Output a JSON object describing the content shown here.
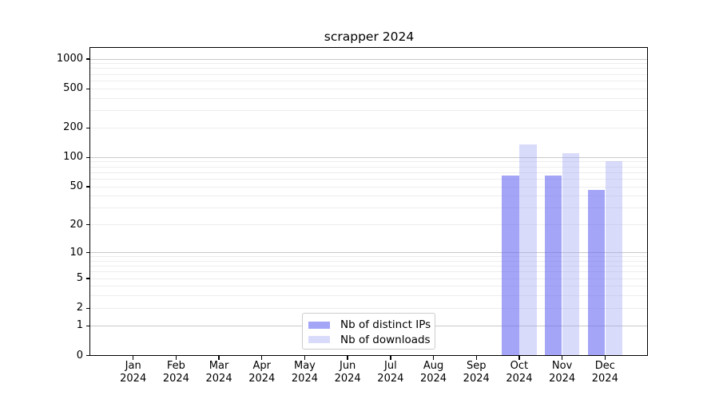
{
  "chart_data": {
    "type": "bar",
    "title": "scrapper 2024",
    "categories": [
      "Jan 2024",
      "Feb 2024",
      "Mar 2024",
      "Apr 2024",
      "May 2024",
      "Jun 2024",
      "Jul 2024",
      "Aug 2024",
      "Sep 2024",
      "Oct 2024",
      "Nov 2024",
      "Dec 2024"
    ],
    "series": [
      {
        "name": "Nb of distinct IPs",
        "color": "rgba(110,110,242,0.62)",
        "values": [
          0,
          0,
          0,
          0,
          0,
          0,
          0,
          0,
          0,
          65,
          65,
          46
        ]
      },
      {
        "name": "Nb of downloads",
        "color": "rgba(160,165,245,0.40)",
        "values": [
          0,
          0,
          0,
          0,
          0,
          0,
          0,
          0,
          0,
          135,
          110,
          92
        ]
      }
    ],
    "xlabel": "",
    "ylabel": "",
    "y_axis": {
      "scale": "symlog (log1p)",
      "tick_values": [
        0,
        1,
        2,
        5,
        10,
        20,
        50,
        100,
        200,
        500,
        1000
      ],
      "tick_labels": [
        "0",
        "1",
        "2",
        "5",
        "10",
        "20",
        "50",
        "100",
        "200",
        "500",
        "1000"
      ],
      "minor_grid_values": [
        2,
        3,
        4,
        5,
        6,
        7,
        8,
        9,
        20,
        30,
        40,
        50,
        60,
        70,
        80,
        90,
        200,
        300,
        400,
        500,
        600,
        700,
        800,
        900
      ],
      "major_grid_values": [
        1,
        10,
        100,
        1000
      ],
      "range_max": 1300
    },
    "grid": "on",
    "legend_position": "bottom-center",
    "colors": {
      "bar_distinct_ips": "#a9a9f7",
      "bar_downloads": "#d9dbfa",
      "major_grid": "#c9c9c9",
      "minor_grid": "#ededed",
      "axis": "#000000",
      "background": "#ffffff"
    }
  }
}
